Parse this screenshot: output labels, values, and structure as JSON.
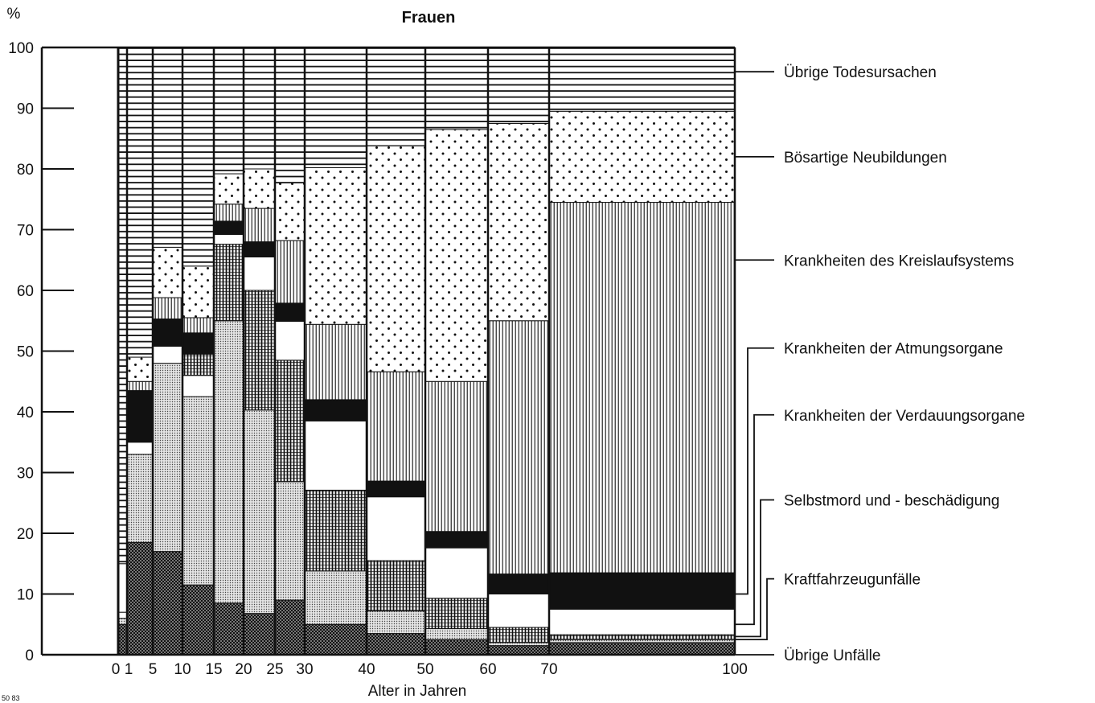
{
  "chart_data": {
    "type": "bar",
    "subtype": "stacked-variable-width",
    "title": "Frauen",
    "ylabel": "%",
    "xlabel": "Alter in Jahren",
    "footnote": "50 83",
    "ylim": [
      0,
      100
    ],
    "yticks": [
      "0",
      "10",
      "20",
      "30",
      "40",
      "50",
      "60",
      "70",
      "80",
      "90",
      "100"
    ],
    "xticks": [
      "0",
      "1",
      "5",
      "10",
      "15",
      "20",
      "25",
      "30",
      "40",
      "50",
      "60",
      "70",
      "100"
    ],
    "grid": false,
    "legend_position": "right",
    "categories": [
      {
        "from": 0,
        "to": 1
      },
      {
        "from": 1,
        "to": 5
      },
      {
        "from": 5,
        "to": 10
      },
      {
        "from": 10,
        "to": 15
      },
      {
        "from": 15,
        "to": 20
      },
      {
        "from": 20,
        "to": 25
      },
      {
        "from": 25,
        "to": 30
      },
      {
        "from": 30,
        "to": 40
      },
      {
        "from": 40,
        "to": 50
      },
      {
        "from": 50,
        "to": 60
      },
      {
        "from": 60,
        "to": 70
      },
      {
        "from": 70,
        "to": 100
      }
    ],
    "series": [
      {
        "name": "Übrige Unfälle",
        "pattern": "crosshatch",
        "values": [
          5,
          18.5,
          17,
          11.5,
          8.5,
          6.8,
          9,
          5,
          3.5,
          2.5,
          1.5,
          2
        ]
      },
      {
        "name": "Kraftfahrzeugunfälle",
        "pattern": "dense-dots",
        "values": [
          1,
          14.5,
          31,
          31,
          46.5,
          33.5,
          19.5,
          8.8,
          3.7,
          1.8,
          0.5,
          0.5
        ]
      },
      {
        "name": "Selbstmord und - beschädigung",
        "pattern": "white",
        "values": [
          1,
          2,
          2.8,
          3.5,
          0,
          0,
          0,
          0,
          0,
          0,
          0,
          0
        ]
      },
      {
        "name": "Krankheiten der Verdauungsorgane",
        "pattern": "grid",
        "values": [
          0,
          0,
          0,
          3.5,
          12.6,
          19.7,
          20,
          13.3,
          8.3,
          5,
          2.5,
          0.8
        ]
      },
      {
        "name": "Krankheiten der Atmungsorgane",
        "pattern": "white",
        "values": [
          8,
          0,
          0,
          0,
          1.6,
          5.5,
          6.4,
          11.4,
          10.5,
          8.3,
          5.5,
          4.2
        ]
      },
      {
        "name": "Krankheiten der Atmungsorgane",
        "pattern": "black",
        "values": [
          0,
          8.5,
          4.5,
          3.5,
          2.2,
          2.5,
          3,
          3.5,
          2.6,
          2.7,
          3.3,
          6
        ]
      },
      {
        "name": "Krankheiten des Kreislaufsystems",
        "pattern": "vertical",
        "values": [
          0,
          1.5,
          3.5,
          2.5,
          2.8,
          5.5,
          10.3,
          12.4,
          18,
          24.7,
          41.7,
          61
        ]
      },
      {
        "name": "Bösartige Neubildungen",
        "pattern": "sparse-dots",
        "values": [
          0,
          4,
          8.3,
          8.5,
          5,
          6.5,
          9.5,
          25.8,
          37.2,
          41.5,
          32.5,
          15
        ]
      },
      {
        "name": "Übrige Todesursachen",
        "pattern": "horizontal",
        "values": [
          85,
          51,
          33,
          36,
          20.8,
          20.5,
          22.3,
          20.2,
          16.2,
          13.5,
          12.5,
          10.5
        ]
      }
    ],
    "legend": [
      {
        "label": "Übrige Todesursachen",
        "y": 96
      },
      {
        "label": "Bösartige Neubildungen",
        "y": 82
      },
      {
        "label": "Krankheiten des Kreislaufsystems",
        "y": 65
      },
      {
        "label": "Krankheiten der Atmungsorgane",
        "y": 50.5
      },
      {
        "label": "Krankheiten der Verdauungsorgane",
        "y": 39.5
      },
      {
        "label": "Selbstmord und - beschädigung",
        "y": 25.5
      },
      {
        "label": "Kraftfahrzeugunfälle",
        "y": 12.5
      },
      {
        "label": "Übrige Unfälle",
        "y": 0
      }
    ]
  }
}
